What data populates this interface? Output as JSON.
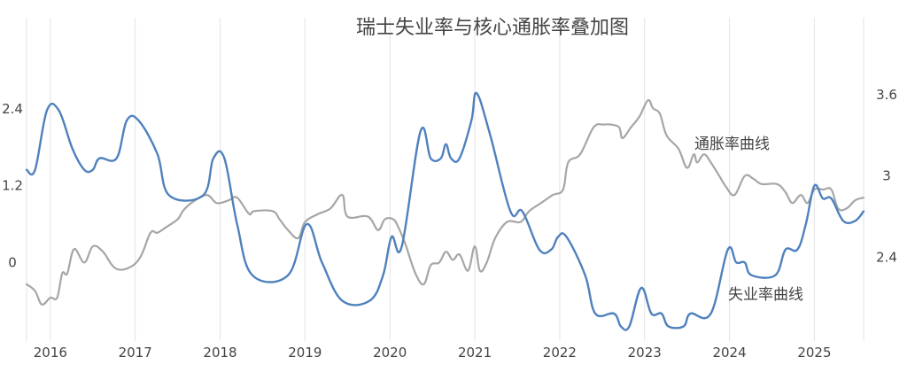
{
  "chart_data": {
    "type": "line",
    "title": "瑞士失业率与核心通胀率叠加图",
    "xlabel": "",
    "ylabel_left": "",
    "ylabel_right": "",
    "x_ticks": [
      "2016",
      "2017",
      "2018",
      "2019",
      "2020",
      "2021",
      "2022",
      "2023",
      "2024",
      "2025"
    ],
    "left_axis": {
      "ticks": [
        "0",
        "1.2",
        "2.4"
      ],
      "ylim": [
        -1.23,
        3.83
      ]
    },
    "right_axis": {
      "ticks": [
        "2.4",
        "3",
        "3.6"
      ],
      "ylim": [
        1.78,
        4.17
      ]
    },
    "xlim": [
      2015.72,
      2025.58
    ],
    "grid": true,
    "legend": "none",
    "annotations": {
      "unemployment": "失业率曲线",
      "inflation": "通胀率曲线"
    },
    "series": [
      {
        "key": "unemployment",
        "axis": "left",
        "color": "#4f81bd",
        "points": [
          [
            2015.72,
            1.45
          ],
          [
            2015.82,
            1.45
          ],
          [
            2015.96,
            2.38
          ],
          [
            2016.1,
            2.38
          ],
          [
            2016.26,
            1.78
          ],
          [
            2016.4,
            1.45
          ],
          [
            2016.5,
            1.45
          ],
          [
            2016.58,
            1.63
          ],
          [
            2016.78,
            1.63
          ],
          [
            2016.9,
            2.22
          ],
          [
            2017.04,
            2.22
          ],
          [
            2017.26,
            1.7
          ],
          [
            2017.4,
            1.05
          ],
          [
            2017.8,
            1.05
          ],
          [
            2017.92,
            1.63
          ],
          [
            2018.05,
            1.63
          ],
          [
            2018.2,
            0.6
          ],
          [
            2018.38,
            -0.2
          ],
          [
            2018.8,
            -0.2
          ],
          [
            2019.02,
            0.6
          ],
          [
            2019.2,
            0.0
          ],
          [
            2019.44,
            -0.6
          ],
          [
            2019.76,
            -0.6
          ],
          [
            2019.92,
            -0.2
          ],
          [
            2020.02,
            0.4
          ],
          [
            2020.14,
            0.25
          ],
          [
            2020.36,
            2.05
          ],
          [
            2020.48,
            1.63
          ],
          [
            2020.6,
            1.63
          ],
          [
            2020.66,
            1.85
          ],
          [
            2020.72,
            1.63
          ],
          [
            2020.82,
            1.63
          ],
          [
            2020.96,
            2.22
          ],
          [
            2021.02,
            2.65
          ],
          [
            2021.18,
            2.0
          ],
          [
            2021.42,
            0.8
          ],
          [
            2021.56,
            0.8
          ],
          [
            2021.76,
            0.2
          ],
          [
            2021.9,
            0.2
          ],
          [
            2021.98,
            0.4
          ],
          [
            2022.08,
            0.4
          ],
          [
            2022.3,
            -0.2
          ],
          [
            2022.42,
            -0.8
          ],
          [
            2022.64,
            -0.8
          ],
          [
            2022.72,
            -1.0
          ],
          [
            2022.82,
            -1.0
          ],
          [
            2022.96,
            -0.4
          ],
          [
            2023.08,
            -0.8
          ],
          [
            2023.2,
            -0.8
          ],
          [
            2023.28,
            -1.0
          ],
          [
            2023.46,
            -1.0
          ],
          [
            2023.54,
            -0.8
          ],
          [
            2023.78,
            -0.8
          ],
          [
            2023.98,
            0.2
          ],
          [
            2024.08,
            0.0
          ],
          [
            2024.18,
            0.0
          ],
          [
            2024.26,
            -0.2
          ],
          [
            2024.54,
            -0.2
          ],
          [
            2024.66,
            0.2
          ],
          [
            2024.8,
            0.2
          ],
          [
            2024.9,
            0.6
          ],
          [
            2025.0,
            1.2
          ],
          [
            2025.1,
            1.0
          ],
          [
            2025.2,
            1.0
          ],
          [
            2025.34,
            0.65
          ],
          [
            2025.48,
            0.65
          ],
          [
            2025.58,
            0.8
          ]
        ]
      },
      {
        "key": "inflation",
        "axis": "right",
        "color": "#a6a6a6",
        "points": [
          [
            2015.72,
            2.2
          ],
          [
            2015.82,
            2.15
          ],
          [
            2015.9,
            2.05
          ],
          [
            2016.0,
            2.1
          ],
          [
            2016.08,
            2.1
          ],
          [
            2016.14,
            2.28
          ],
          [
            2016.2,
            2.28
          ],
          [
            2016.28,
            2.46
          ],
          [
            2016.4,
            2.36
          ],
          [
            2016.5,
            2.48
          ],
          [
            2016.62,
            2.44
          ],
          [
            2016.76,
            2.32
          ],
          [
            2016.92,
            2.32
          ],
          [
            2017.06,
            2.4
          ],
          [
            2017.18,
            2.58
          ],
          [
            2017.26,
            2.58
          ],
          [
            2017.36,
            2.62
          ],
          [
            2017.5,
            2.68
          ],
          [
            2017.56,
            2.74
          ],
          [
            2017.66,
            2.8
          ],
          [
            2017.84,
            2.86
          ],
          [
            2017.96,
            2.8
          ],
          [
            2018.1,
            2.82
          ],
          [
            2018.2,
            2.84
          ],
          [
            2018.34,
            2.72
          ],
          [
            2018.4,
            2.74
          ],
          [
            2018.62,
            2.74
          ],
          [
            2018.7,
            2.68
          ],
          [
            2018.8,
            2.6
          ],
          [
            2018.92,
            2.54
          ],
          [
            2019.0,
            2.66
          ],
          [
            2019.16,
            2.72
          ],
          [
            2019.3,
            2.76
          ],
          [
            2019.44,
            2.86
          ],
          [
            2019.5,
            2.7
          ],
          [
            2019.74,
            2.7
          ],
          [
            2019.86,
            2.6
          ],
          [
            2019.94,
            2.68
          ],
          [
            2020.04,
            2.68
          ],
          [
            2020.1,
            2.62
          ],
          [
            2020.18,
            2.5
          ],
          [
            2020.3,
            2.28
          ],
          [
            2020.4,
            2.2
          ],
          [
            2020.48,
            2.34
          ],
          [
            2020.58,
            2.36
          ],
          [
            2020.66,
            2.44
          ],
          [
            2020.74,
            2.38
          ],
          [
            2020.82,
            2.42
          ],
          [
            2020.92,
            2.3
          ],
          [
            2021.0,
            2.48
          ],
          [
            2021.06,
            2.3
          ],
          [
            2021.14,
            2.36
          ],
          [
            2021.24,
            2.54
          ],
          [
            2021.38,
            2.66
          ],
          [
            2021.54,
            2.66
          ],
          [
            2021.64,
            2.74
          ],
          [
            2021.78,
            2.8
          ],
          [
            2021.92,
            2.86
          ],
          [
            2022.04,
            2.9
          ],
          [
            2022.1,
            3.1
          ],
          [
            2022.24,
            3.16
          ],
          [
            2022.4,
            3.36
          ],
          [
            2022.52,
            3.38
          ],
          [
            2022.6,
            3.38
          ],
          [
            2022.7,
            3.36
          ],
          [
            2022.74,
            3.28
          ],
          [
            2022.84,
            3.36
          ],
          [
            2022.94,
            3.44
          ],
          [
            2023.04,
            3.56
          ],
          [
            2023.1,
            3.5
          ],
          [
            2023.18,
            3.46
          ],
          [
            2023.26,
            3.3
          ],
          [
            2023.4,
            3.2
          ],
          [
            2023.5,
            3.06
          ],
          [
            2023.58,
            3.16
          ],
          [
            2023.62,
            3.1
          ],
          [
            2023.7,
            3.16
          ],
          [
            2023.78,
            3.1
          ],
          [
            2023.88,
            3.0
          ],
          [
            2023.96,
            2.92
          ],
          [
            2024.06,
            2.86
          ],
          [
            2024.18,
            3.0
          ],
          [
            2024.28,
            2.98
          ],
          [
            2024.38,
            2.94
          ],
          [
            2024.56,
            2.94
          ],
          [
            2024.66,
            2.88
          ],
          [
            2024.74,
            2.8
          ],
          [
            2024.84,
            2.86
          ],
          [
            2024.92,
            2.8
          ],
          [
            2025.0,
            2.9
          ],
          [
            2025.1,
            2.9
          ],
          [
            2025.2,
            2.9
          ],
          [
            2025.28,
            2.76
          ],
          [
            2025.38,
            2.76
          ],
          [
            2025.48,
            2.82
          ],
          [
            2025.58,
            2.84
          ]
        ]
      }
    ]
  }
}
